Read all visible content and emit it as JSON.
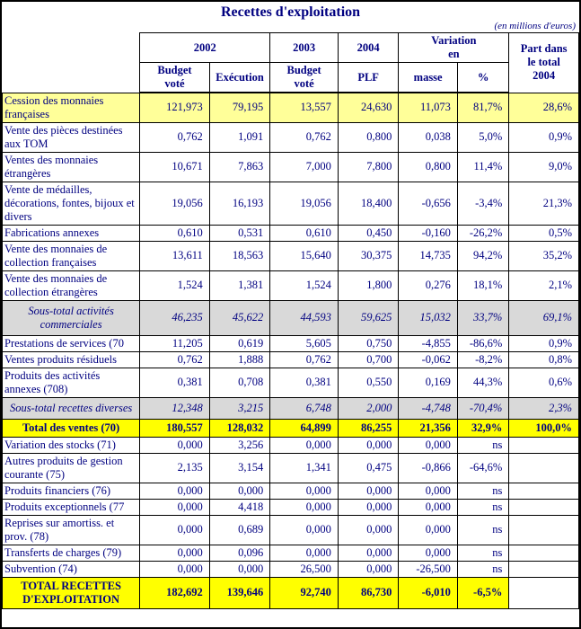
{
  "title": "Recettes d'exploitation",
  "unit_note": "(en millions d'euros)",
  "header": {
    "y2002": "2002",
    "y2003": "2003",
    "y2004": "2004",
    "variation_l1": "Variation",
    "variation_l2": "en",
    "part_l1": "Part dans",
    "part_l2": "le total",
    "part_l3": "2004",
    "budget": "Budget",
    "vote": "voté",
    "execution": "Exécution",
    "budget2": "Budget",
    "vote2": "voté",
    "plf": "PLF",
    "masse": "masse",
    "pct": "%"
  },
  "rows": [
    {
      "label": "Cession des monnaies françaises",
      "style": "highlight",
      "values": [
        "121,973",
        "79,195",
        "13,557",
        "24,630",
        "11,073",
        "81,7%",
        "28,6%"
      ]
    },
    {
      "label": "Vente des pièces destinées aux TOM",
      "style": "normal",
      "values": [
        "0,762",
        "1,091",
        "0,762",
        "0,800",
        "0,038",
        "5,0%",
        "0,9%"
      ]
    },
    {
      "label": "Ventes des monnaies étrangères",
      "style": "normal",
      "values": [
        "10,671",
        "7,863",
        "7,000",
        "7,800",
        "0,800",
        "11,4%",
        "9,0%"
      ]
    },
    {
      "label": "Vente de médailles, décorations, fontes, bijoux et divers",
      "style": "normal",
      "values": [
        "19,056",
        "16,193",
        "19,056",
        "18,400",
        "-0,656",
        "-3,4%",
        "21,3%"
      ]
    },
    {
      "label": "Fabrications annexes",
      "style": "normal",
      "values": [
        "0,610",
        "0,531",
        "0,610",
        "0,450",
        "-0,160",
        "-26,2%",
        "0,5%"
      ]
    },
    {
      "label": "Vente des monnaies de collection françaises",
      "style": "normal",
      "values": [
        "13,611",
        "18,563",
        "15,640",
        "30,375",
        "14,735",
        "94,2%",
        "35,2%"
      ]
    },
    {
      "label": "Vente des monnaies de collection étrangères",
      "style": "normal",
      "values": [
        "1,524",
        "1,381",
        "1,524",
        "1,800",
        "0,276",
        "18,1%",
        "2,1%"
      ]
    },
    {
      "label": "Sous-total activités commerciales",
      "style": "subtotal",
      "values": [
        "46,235",
        "45,622",
        "44,593",
        "59,625",
        "15,032",
        "33,7%",
        "69,1%"
      ]
    },
    {
      "label": "Prestations de services (70",
      "style": "normal",
      "values": [
        "11,205",
        "0,619",
        "5,605",
        "0,750",
        "-4,855",
        "-86,6%",
        "0,9%"
      ]
    },
    {
      "label": "Ventes produits résiduels",
      "style": "normal",
      "values": [
        "0,762",
        "1,888",
        "0,762",
        "0,700",
        "-0,062",
        "-8,2%",
        "0,8%"
      ]
    },
    {
      "label": "Produits des activités annexes (708)",
      "style": "normal",
      "values": [
        "0,381",
        "0,708",
        "0,381",
        "0,550",
        "0,169",
        "44,3%",
        "0,6%"
      ]
    },
    {
      "label": "Sous-total recettes diverses",
      "style": "subtotal",
      "values": [
        "12,348",
        "3,215",
        "6,748",
        "2,000",
        "-4,748",
        "-70,4%",
        "2,3%"
      ]
    },
    {
      "label": "Total des ventes (70)",
      "style": "total",
      "values": [
        "180,557",
        "128,032",
        "64,899",
        "86,255",
        "21,356",
        "32,9%",
        "100,0%"
      ]
    },
    {
      "label": "Variation des stocks (71)",
      "style": "normal",
      "values": [
        "0,000",
        "3,256",
        "0,000",
        "0,000",
        "0,000",
        "ns",
        ""
      ]
    },
    {
      "label": "Autres produits de gestion courante (75)",
      "style": "normal",
      "values": [
        "2,135",
        "3,154",
        "1,341",
        "0,475",
        "-0,866",
        "-64,6%",
        ""
      ]
    },
    {
      "label": "Produits financiers (76)",
      "style": "normal",
      "values": [
        "0,000",
        "0,000",
        "0,000",
        "0,000",
        "0,000",
        "ns",
        ""
      ]
    },
    {
      "label": "Produits exceptionnels (77",
      "style": "normal",
      "values": [
        "0,000",
        "4,418",
        "0,000",
        "0,000",
        "0,000",
        "ns",
        ""
      ]
    },
    {
      "label": "Reprises sur amortiss. et prov. (78)",
      "style": "normal",
      "values": [
        "0,000",
        "0,689",
        "0,000",
        "0,000",
        "0,000",
        "ns",
        ""
      ]
    },
    {
      "label": "Transferts de charges (79)",
      "style": "normal",
      "values": [
        "0,000",
        "0,096",
        "0,000",
        "0,000",
        "0,000",
        "ns",
        ""
      ]
    },
    {
      "label": "Subvention (74)",
      "style": "normal",
      "values": [
        "0,000",
        "0,000",
        "26,500",
        "0,000",
        "-26,500",
        "ns",
        ""
      ]
    },
    {
      "label": "TOTAL RECETTES D'EXPLOITATION",
      "style": "grandtotal",
      "values": [
        "182,692",
        "139,646",
        "92,740",
        "86,730",
        "-6,010",
        "-6,5%",
        ""
      ]
    }
  ]
}
